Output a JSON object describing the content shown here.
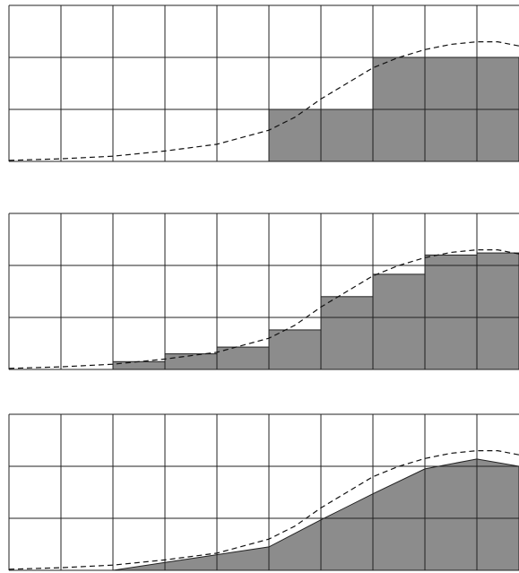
{
  "chart_data": [
    {
      "type": "histogram",
      "bins": [
        0,
        5,
        7,
        9.81
      ],
      "values": [
        0,
        1,
        2
      ],
      "color": "#8c8c8c",
      "curve": {
        "x": [
          0,
          1,
          2,
          3,
          4,
          5,
          5.5,
          6,
          6.5,
          7,
          7.5,
          8,
          8.5,
          9,
          9.4,
          9.81
        ],
        "values": [
          0.02,
          0.05,
          0.1,
          0.2,
          0.33,
          0.6,
          0.85,
          1.2,
          1.5,
          1.8,
          2.0,
          2.15,
          2.25,
          2.3,
          2.3,
          2.22
        ]
      },
      "xlim": [
        0,
        9.81
      ],
      "ylim": [
        0,
        3
      ],
      "xticks": [
        0,
        1,
        2,
        3,
        4,
        5,
        6,
        7,
        8,
        9
      ],
      "yticks": [
        0,
        1,
        2,
        3
      ],
      "grid": true
    },
    {
      "type": "histogram",
      "bins": [
        0,
        1,
        2,
        3,
        4,
        5,
        6,
        7,
        8,
        9,
        9.81
      ],
      "values": [
        0,
        0,
        0.15,
        0.3,
        0.43,
        0.76,
        1.4,
        1.83,
        2.2,
        2.24
      ],
      "color": "#8c8c8c",
      "curve": {
        "x": [
          0,
          1,
          2,
          3,
          4,
          5,
          5.5,
          6,
          6.5,
          7,
          7.5,
          8,
          8.5,
          9,
          9.4,
          9.81
        ],
        "values": [
          0.02,
          0.05,
          0.1,
          0.2,
          0.33,
          0.6,
          0.85,
          1.2,
          1.5,
          1.8,
          2.0,
          2.15,
          2.25,
          2.3,
          2.3,
          2.22
        ]
      },
      "xlim": [
        0,
        9.81
      ],
      "ylim": [
        0,
        3
      ],
      "xticks": [
        0,
        1,
        2,
        3,
        4,
        5,
        6,
        7,
        8,
        9
      ],
      "yticks": [
        0,
        1,
        2,
        3
      ],
      "grid": true
    },
    {
      "type": "area",
      "x": [
        0,
        1,
        2,
        3,
        4,
        5,
        6,
        7,
        8,
        9,
        9.81
      ],
      "values": [
        0,
        0,
        0,
        0.15,
        0.3,
        0.45,
        0.97,
        1.47,
        1.95,
        2.14,
        2.0
      ],
      "color": "#8c8c8c",
      "curve": {
        "x": [
          0,
          1,
          2,
          3,
          4,
          5,
          5.5,
          6,
          6.5,
          7,
          7.5,
          8,
          8.5,
          9,
          9.4,
          9.81
        ],
        "values": [
          0.02,
          0.05,
          0.1,
          0.2,
          0.33,
          0.6,
          0.85,
          1.2,
          1.5,
          1.8,
          2.0,
          2.15,
          2.25,
          2.3,
          2.3,
          2.22
        ]
      },
      "xlim": [
        0,
        9.81
      ],
      "ylim": [
        0,
        3
      ],
      "xticks": [
        0,
        1,
        2,
        3,
        4,
        5,
        6,
        7,
        8,
        9
      ],
      "yticks": [
        0,
        1,
        2,
        3
      ],
      "grid": true
    }
  ]
}
